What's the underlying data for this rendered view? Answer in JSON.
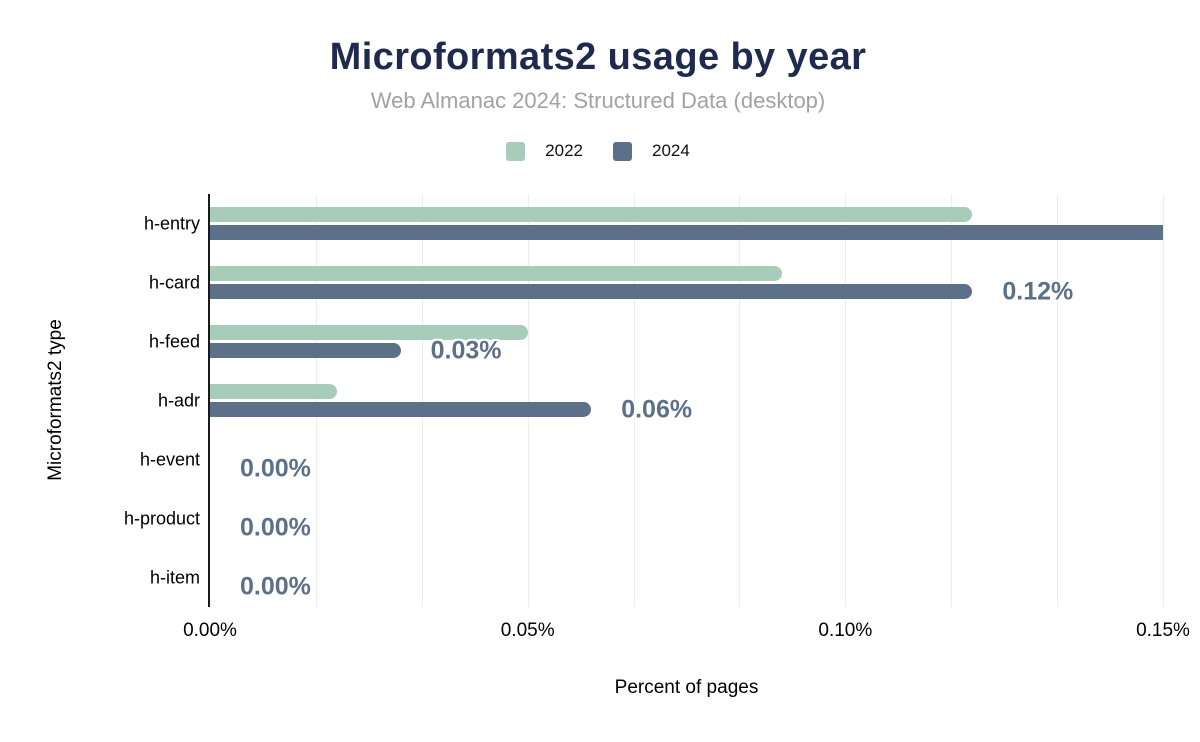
{
  "chart_data": {
    "type": "bar",
    "orientation": "horizontal",
    "title": "Microformats2 usage by year",
    "subtitle": "Web Almanac 2024: Structured Data (desktop)",
    "xlabel": "Percent of pages",
    "ylabel": "Microformats2 type",
    "categories": [
      "h-entry",
      "h-card",
      "h-feed",
      "h-adr",
      "h-event",
      "h-product",
      "h-item"
    ],
    "series": [
      {
        "name": "2022",
        "color": "#a8ccba",
        "values": [
          0.12,
          0.09,
          0.05,
          0.02,
          0,
          0,
          0
        ]
      },
      {
        "name": "2024",
        "color": "#5d7089",
        "values": [
          0.15,
          0.12,
          0.03,
          0.06,
          0,
          0,
          0
        ],
        "annotations": [
          "",
          "0.12%",
          "0.03%",
          "0.06%",
          "0.00%",
          "0.00%",
          "0.00%"
        ]
      }
    ],
    "x_ticks": [
      "0.00%",
      "0.05%",
      "0.10%",
      "0.15%"
    ],
    "xlim": [
      0,
      0.15
    ],
    "grid": {
      "show": true,
      "minor_per_major": 3,
      "color": "#ececec"
    },
    "legend_position": "top",
    "annotation_color": "#5d7089"
  },
  "colors": {
    "background": "#ffffff",
    "title": "#1f2b4e",
    "subtitle": "#a2a2a2",
    "axis_line": "#1a1a1a",
    "label_text": "#000000"
  }
}
